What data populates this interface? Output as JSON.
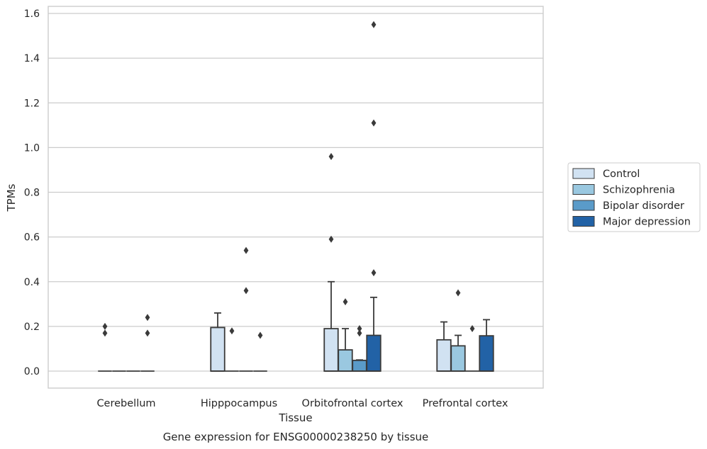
{
  "chart_data": {
    "type": "box",
    "title": "Gene expression for ENSG00000238250 by tissue",
    "xlabel": "Tissue",
    "ylabel": "TPMs",
    "ylim": [
      -0.075,
      1.63
    ],
    "yticks": [
      0.0,
      0.2,
      0.4,
      0.6,
      0.8,
      1.0,
      1.2,
      1.4,
      1.6
    ],
    "grid": true,
    "legend": "right",
    "categories": [
      "Cerebellum",
      "Hipppocampus",
      "Orbitofrontal cortex",
      "Prefrontal cortex"
    ],
    "series": [
      {
        "name": "Control",
        "color": "#d1e2f2",
        "boxes": [
          {
            "q1": 0,
            "median": 0,
            "q3": 0,
            "whisker_low": 0,
            "whisker_high": 0,
            "outliers": [
              0.17,
              0.2
            ]
          },
          {
            "q1": 0,
            "median": 0,
            "q3": 0.195,
            "whisker_low": 0,
            "whisker_high": 0.26,
            "outliers": []
          },
          {
            "q1": 0,
            "median": 0,
            "q3": 0.19,
            "whisker_low": 0,
            "whisker_high": 0.4,
            "outliers": [
              0.59,
              0.96
            ]
          },
          {
            "q1": 0,
            "median": 0,
            "q3": 0.14,
            "whisker_low": 0,
            "whisker_high": 0.22,
            "outliers": []
          }
        ]
      },
      {
        "name": "Schizophrenia",
        "color": "#9ac8e0",
        "boxes": [
          {
            "q1": 0,
            "median": 0,
            "q3": 0,
            "whisker_low": 0,
            "whisker_high": 0,
            "outliers": []
          },
          {
            "q1": 0,
            "median": 0,
            "q3": 0,
            "whisker_low": 0,
            "whisker_high": 0,
            "outliers": [
              0.18
            ]
          },
          {
            "q1": 0,
            "median": 0,
            "q3": 0.095,
            "whisker_low": 0,
            "whisker_high": 0.19,
            "outliers": [
              0.31
            ]
          },
          {
            "q1": 0,
            "median": 0,
            "q3": 0.113,
            "whisker_low": 0,
            "whisker_high": 0.16,
            "outliers": [
              0.35
            ]
          }
        ]
      },
      {
        "name": "Bipolar disorder",
        "color": "#5a9bc9",
        "boxes": [
          {
            "q1": 0,
            "median": 0,
            "q3": 0,
            "whisker_low": 0,
            "whisker_high": 0,
            "outliers": []
          },
          {
            "q1": 0,
            "median": 0,
            "q3": 0,
            "whisker_low": 0,
            "whisker_high": 0,
            "outliers": [
              0.36,
              0.54
            ]
          },
          {
            "q1": 0,
            "median": 0,
            "q3": 0.048,
            "whisker_low": 0,
            "whisker_high": 0.05,
            "outliers": [
              0.17,
              0.19
            ]
          },
          {
            "q1": 0,
            "median": 0,
            "q3": 0,
            "whisker_low": 0,
            "whisker_high": 0,
            "outliers": [
              0.19
            ]
          }
        ]
      },
      {
        "name": "Major depression",
        "color": "#2262a6",
        "boxes": [
          {
            "q1": 0,
            "median": 0,
            "q3": 0,
            "whisker_low": 0,
            "whisker_high": 0,
            "outliers": [
              0.17,
              0.24
            ]
          },
          {
            "q1": 0,
            "median": 0,
            "q3": 0,
            "whisker_low": 0,
            "whisker_high": 0,
            "outliers": [
              0.16
            ]
          },
          {
            "q1": 0,
            "median": 0,
            "q3": 0.16,
            "whisker_low": 0,
            "whisker_high": 0.33,
            "outliers": [
              0.44,
              1.11,
              1.55
            ]
          },
          {
            "q1": 0,
            "median": 0,
            "q3": 0.158,
            "whisker_low": 0,
            "whisker_high": 0.23,
            "outliers": []
          }
        ]
      }
    ]
  }
}
